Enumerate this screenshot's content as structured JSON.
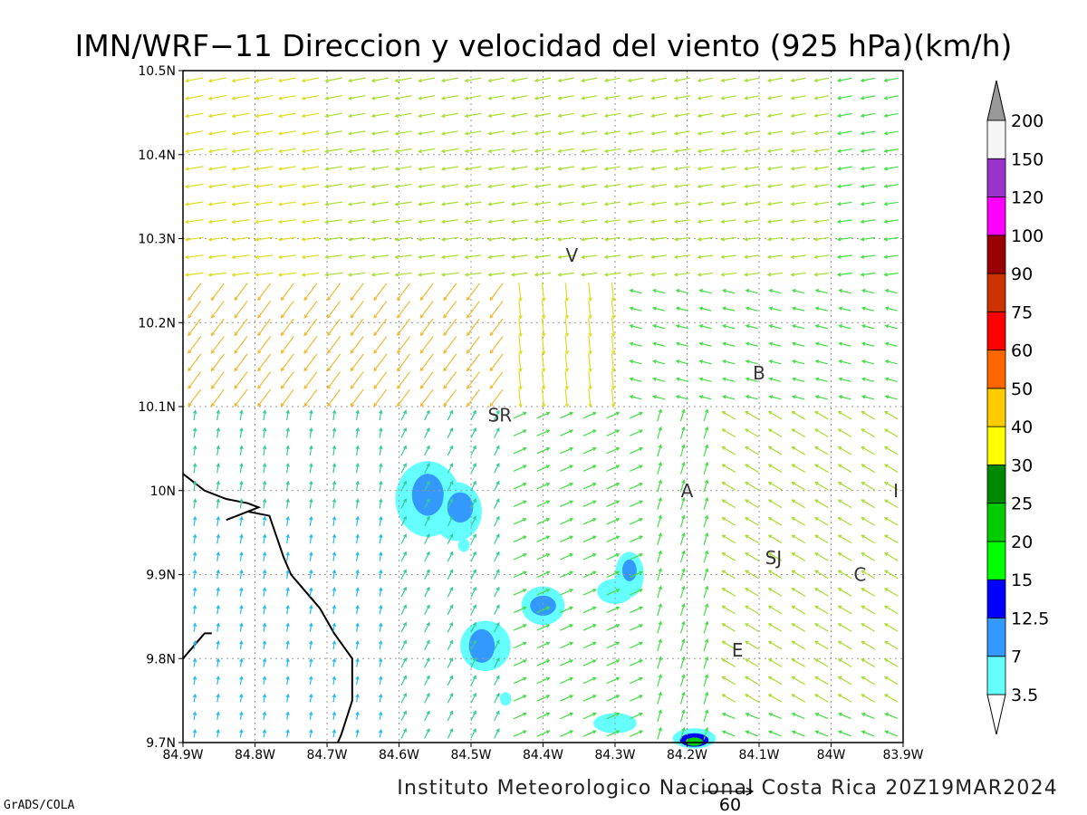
{
  "title": "IMN/WRF−11 Direccion y velocidad del viento (925 hPa)(km/h)",
  "footer": "Instituto Meteorologico Nacional Costa Rica 20Z19MAR2024",
  "credit": "GrADS/COLA",
  "reference_vector": {
    "label": "60",
    "speed": 60
  },
  "map": {
    "lon_range": [
      -84.9,
      -83.9
    ],
    "lat_range": [
      9.7,
      10.5
    ],
    "lon_ticks": [
      {
        "lon": -84.9,
        "label": "84.9W"
      },
      {
        "lon": -84.8,
        "label": "84.8W"
      },
      {
        "lon": -84.7,
        "label": "84.7W"
      },
      {
        "lon": -84.6,
        "label": "84.6W"
      },
      {
        "lon": -84.5,
        "label": "84.5W"
      },
      {
        "lon": -84.4,
        "label": "84.4W"
      },
      {
        "lon": -84.3,
        "label": "84.3W"
      },
      {
        "lon": -84.2,
        "label": "84.2W"
      },
      {
        "lon": -84.1,
        "label": "84.1W"
      },
      {
        "lon": -84.0,
        "label": "84W"
      },
      {
        "lon": -83.9,
        "label": "83.9W"
      }
    ],
    "lat_ticks": [
      {
        "lat": 9.7,
        "label": "9.7N"
      },
      {
        "lat": 9.8,
        "label": "9.8N"
      },
      {
        "lat": 9.9,
        "label": "9.9N"
      },
      {
        "lat": 10.0,
        "label": "10N"
      },
      {
        "lat": 10.1,
        "label": "10.1N"
      },
      {
        "lat": 10.2,
        "label": "10.2N"
      },
      {
        "lat": 10.3,
        "label": "10.3N"
      },
      {
        "lat": 10.4,
        "label": "10.4N"
      },
      {
        "lat": 10.5,
        "label": "10.5N"
      }
    ],
    "grid": true,
    "place_labels": [
      {
        "text": "V",
        "lon": -84.36,
        "lat": 10.28
      },
      {
        "text": "B",
        "lon": -84.1,
        "lat": 10.14
      },
      {
        "text": "SR",
        "lon": -84.46,
        "lat": 10.09
      },
      {
        "text": "A",
        "lon": -84.2,
        "lat": 10.0
      },
      {
        "text": "I",
        "lon": -83.91,
        "lat": 10.0
      },
      {
        "text": "SJ",
        "lon": -84.08,
        "lat": 9.92
      },
      {
        "text": "C",
        "lon": -83.96,
        "lat": 9.9
      },
      {
        "text": "E",
        "lon": -84.13,
        "lat": 9.81
      }
    ],
    "coastline": [
      [
        -84.9,
        10.02
      ],
      [
        -84.87,
        10.0
      ],
      [
        -84.84,
        9.99
      ],
      [
        -84.81,
        9.985
      ],
      [
        -84.795,
        9.98
      ],
      [
        -84.84,
        9.965
      ],
      [
        -84.81,
        9.975
      ],
      [
        -84.78,
        9.97
      ],
      [
        -84.76,
        9.92
      ],
      [
        -84.75,
        9.9
      ],
      [
        -84.73,
        9.88
      ],
      [
        -84.71,
        9.86
      ],
      [
        -84.69,
        9.83
      ],
      [
        -84.665,
        9.8
      ],
      [
        -84.665,
        9.75
      ],
      [
        -84.68,
        9.71
      ],
      [
        -84.685,
        9.7
      ]
    ],
    "coastline2": [
      [
        -84.9,
        9.8
      ],
      [
        -84.88,
        9.82
      ],
      [
        -84.87,
        9.83
      ],
      [
        -84.86,
        9.83
      ]
    ]
  },
  "colorbar": {
    "bins": [
      {
        "from": 3.5,
        "to": 7,
        "color": "#66ffff"
      },
      {
        "from": 7,
        "to": 12.5,
        "color": "#3399ff"
      },
      {
        "from": 12.5,
        "to": 15,
        "color": "#0000ff"
      },
      {
        "from": 15,
        "to": 20,
        "color": "#00ff00"
      },
      {
        "from": 20,
        "to": 25,
        "color": "#00cc00"
      },
      {
        "from": 25,
        "to": 30,
        "color": "#008800"
      },
      {
        "from": 30,
        "to": 40,
        "color": "#ffff00"
      },
      {
        "from": 40,
        "to": 50,
        "color": "#ffcc00"
      },
      {
        "from": 50,
        "to": 60,
        "color": "#ff6600"
      },
      {
        "from": 60,
        "to": 75,
        "color": "#ff0000"
      },
      {
        "from": 75,
        "to": 90,
        "color": "#cc3300"
      },
      {
        "from": 90,
        "to": 100,
        "color": "#990000"
      },
      {
        "from": 100,
        "to": 120,
        "color": "#ff00ff"
      },
      {
        "from": 120,
        "to": 150,
        "color": "#9933cc"
      },
      {
        "from": 150,
        "to": 200,
        "color": "#f5f5f5"
      }
    ],
    "labels": [
      "3.5",
      "7",
      "12.5",
      "15",
      "20",
      "25",
      "30",
      "40",
      "50",
      "60",
      "75",
      "90",
      "100",
      "120",
      "150",
      "200"
    ],
    "under_color": "#ffffff",
    "over_color": "#999999"
  },
  "shaded_areas": [
    {
      "lon": -84.56,
      "lat": 9.99,
      "rlon": 0.045,
      "rlat": 0.045,
      "color": "#66ffff"
    },
    {
      "lon": -84.52,
      "lat": 9.975,
      "rlon": 0.035,
      "rlat": 0.035,
      "color": "#66ffff"
    },
    {
      "lon": -84.56,
      "lat": 9.995,
      "rlon": 0.022,
      "rlat": 0.025,
      "color": "#3399ff"
    },
    {
      "lon": -84.515,
      "lat": 9.98,
      "rlon": 0.018,
      "rlat": 0.018,
      "color": "#3399ff"
    },
    {
      "lon": -84.51,
      "lat": 9.935,
      "rlon": 0.008,
      "rlat": 0.008,
      "color": "#66ffff"
    },
    {
      "lon": -84.4,
      "lat": 9.863,
      "rlon": 0.03,
      "rlat": 0.023,
      "color": "#66ffff"
    },
    {
      "lon": -84.4,
      "lat": 9.863,
      "rlon": 0.018,
      "rlat": 0.012,
      "color": "#3399ff"
    },
    {
      "lon": -84.28,
      "lat": 9.9,
      "rlon": 0.02,
      "rlat": 0.027,
      "color": "#66ffff"
    },
    {
      "lon": -84.3,
      "lat": 9.88,
      "rlon": 0.025,
      "rlat": 0.015,
      "color": "#66ffff"
    },
    {
      "lon": -84.28,
      "lat": 9.905,
      "rlon": 0.01,
      "rlat": 0.013,
      "color": "#3399ff"
    },
    {
      "lon": -84.48,
      "lat": 9.815,
      "rlon": 0.035,
      "rlat": 0.03,
      "color": "#66ffff"
    },
    {
      "lon": -84.485,
      "lat": 9.815,
      "rlon": 0.018,
      "rlat": 0.02,
      "color": "#3399ff"
    },
    {
      "lon": -84.452,
      "lat": 9.752,
      "rlon": 0.008,
      "rlat": 0.008,
      "color": "#66ffff"
    },
    {
      "lon": -84.3,
      "lat": 9.723,
      "rlon": 0.03,
      "rlat": 0.012,
      "color": "#66ffff"
    },
    {
      "lon": -84.19,
      "lat": 9.705,
      "rlon": 0.03,
      "rlat": 0.012,
      "color": "#66ffff"
    },
    {
      "lon": -84.19,
      "lat": 9.703,
      "rlon": 0.02,
      "rlat": 0.008,
      "color": "#0000ff"
    },
    {
      "lon": -84.19,
      "lat": 9.701,
      "rlon": 0.012,
      "rlat": 0.005,
      "color": "#00cc00"
    }
  ]
}
